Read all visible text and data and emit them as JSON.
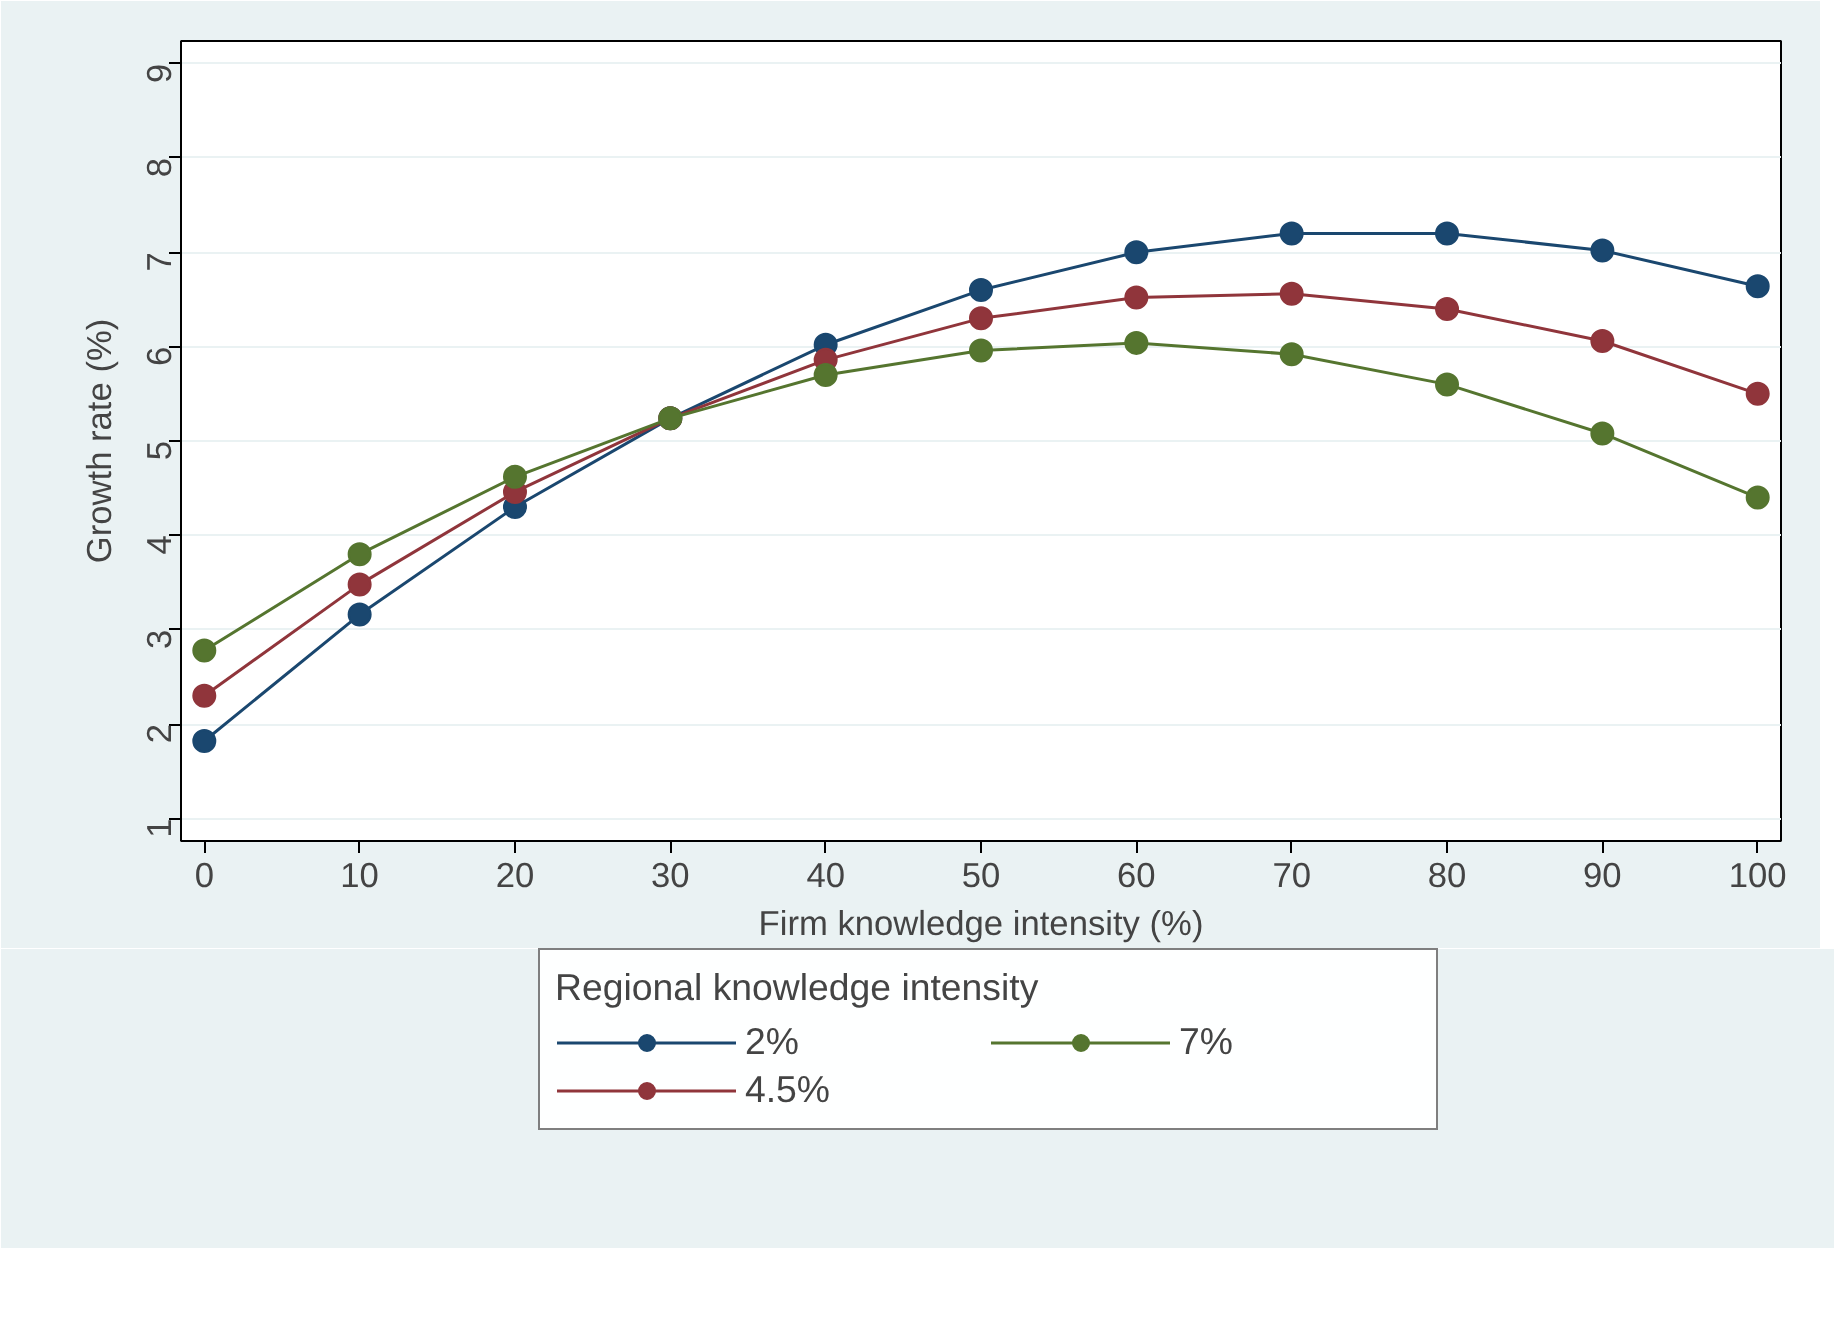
{
  "chart_data": {
    "type": "line",
    "xlabel": "Firm knowledge intensity (%)",
    "ylabel": "Growth rate (%)",
    "legend_title": "Regional knowledge intensity",
    "x": [
      0,
      10,
      20,
      30,
      40,
      50,
      60,
      70,
      80,
      90,
      100
    ],
    "series": [
      {
        "name": "2%",
        "color": "#1a476f",
        "values": [
          1.82,
          3.16,
          4.3,
          5.24,
          6.02,
          6.6,
          7.0,
          7.2,
          7.2,
          7.02,
          6.64
        ]
      },
      {
        "name": "4.5%",
        "color": "#90353b",
        "values": [
          2.3,
          3.48,
          4.46,
          5.24,
          5.86,
          6.3,
          6.52,
          6.56,
          6.4,
          6.06,
          5.5
        ]
      },
      {
        "name": "7%",
        "color": "#55752f",
        "values": [
          2.78,
          3.8,
          4.62,
          5.24,
          5.7,
          5.96,
          6.04,
          5.92,
          5.6,
          5.08,
          4.4
        ]
      }
    ],
    "xlim": [
      -1.5,
      101.5
    ],
    "ylim": [
      0.76,
      9.24
    ],
    "xticks": [
      0,
      10,
      20,
      30,
      40,
      50,
      60,
      70,
      80,
      90,
      100
    ],
    "yticks": [
      1,
      2,
      3,
      4,
      5,
      6,
      7,
      8,
      9
    ],
    "grid": "y",
    "legend": "bottom",
    "marker": "circle",
    "line_style": "solid"
  }
}
